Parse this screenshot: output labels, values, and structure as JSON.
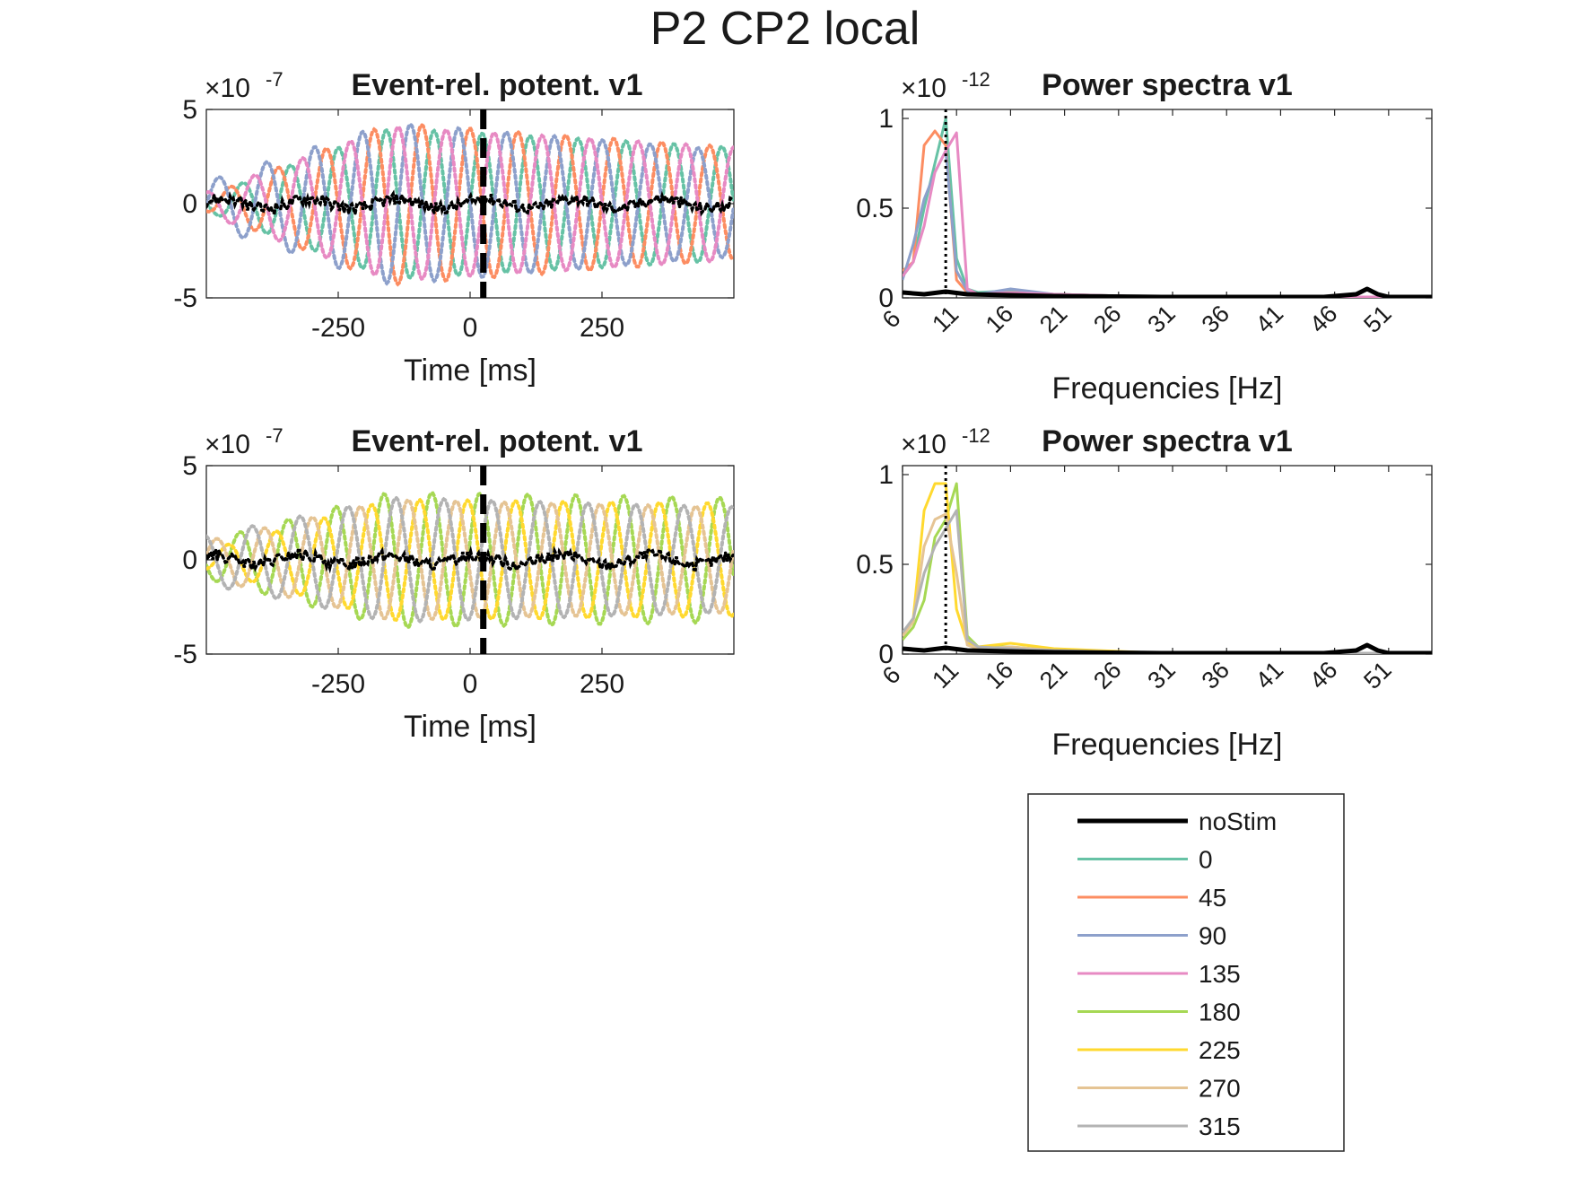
{
  "figure": {
    "title": "P2 CP2 local"
  },
  "legend": {
    "entries": [
      {
        "label": "noStim",
        "color": "#000000",
        "width": 5
      },
      {
        "label": "0",
        "color": "#66C2A5",
        "width": 3
      },
      {
        "label": "45",
        "color": "#FC8D62",
        "width": 3
      },
      {
        "label": "90",
        "color": "#8DA0CB",
        "width": 3
      },
      {
        "label": "135",
        "color": "#E78AC3",
        "width": 3
      },
      {
        "label": "180",
        "color": "#A6D854",
        "width": 3
      },
      {
        "label": "225",
        "color": "#FFD92F",
        "width": 3
      },
      {
        "label": "270",
        "color": "#E5C494",
        "width": 3
      },
      {
        "label": "315",
        "color": "#B3B3B3",
        "width": 3
      }
    ]
  },
  "chart_data": [
    {
      "id": "erp_top",
      "type": "line",
      "title": "Event-rel. potent. v1",
      "exponent_label": "×10",
      "exponent": "-7",
      "xlabel": "Time [ms]",
      "ylabel": "",
      "xlim": [
        -500,
        500
      ],
      "ylim": [
        -5,
        5
      ],
      "xticks": [
        -250,
        0,
        250
      ],
      "xtick_labels": [
        "-250",
        "0",
        "250"
      ],
      "yticks": [
        -5,
        0,
        5
      ],
      "ytick_labels": [
        "-5",
        "0",
        "5"
      ],
      "marker_line": {
        "x": 25,
        "style": "dashed",
        "color": "#000000"
      },
      "series": [
        {
          "name": "0",
          "color": "#66C2A5",
          "style": "dotted",
          "amp_envelope": [
            0.4,
            4.0,
            3.0
          ],
          "freq_hz": 11,
          "phase": 0.0
        },
        {
          "name": "45",
          "color": "#FC8D62",
          "style": "dotted",
          "amp_envelope": [
            0.4,
            4.3,
            3.0
          ],
          "freq_hz": 11,
          "phase": 1.6
        },
        {
          "name": "90",
          "color": "#8DA0CB",
          "style": "dotted",
          "amp_envelope": [
            1.2,
            4.3,
            2.8
          ],
          "freq_hz": 11,
          "phase": 3.1
        },
        {
          "name": "135",
          "color": "#E78AC3",
          "style": "dotted",
          "amp_envelope": [
            0.6,
            4.1,
            3.0
          ],
          "freq_hz": 11,
          "phase": 4.7
        },
        {
          "name": "noStim",
          "color": "#000000",
          "style": "dotted",
          "amp_envelope": [
            0.3,
            0.4,
            0.3
          ],
          "freq_hz": 12,
          "phase": 0.5
        }
      ]
    },
    {
      "id": "psd_top",
      "type": "line",
      "title": "Power spectra v1",
      "exponent_label": "×10",
      "exponent": "-12",
      "xlabel": "Frequencies [Hz]",
      "ylabel": "",
      "xlim": [
        6,
        55
      ],
      "ylim": [
        0,
        1.05
      ],
      "xticks": [
        6,
        11,
        16,
        21,
        26,
        31,
        36,
        41,
        46,
        51
      ],
      "xtick_labels": [
        "6",
        "11",
        "16",
        "21",
        "26",
        "31",
        "36",
        "41",
        "46",
        "51"
      ],
      "yticks": [
        0,
        0.5,
        1
      ],
      "ytick_labels": [
        "0",
        "0.5",
        "1"
      ],
      "marker_line": {
        "x": 10,
        "style": "dotted",
        "color": "#000000"
      },
      "series": [
        {
          "name": "noStim",
          "color": "#000000",
          "width": 5,
          "x": [
            6,
            8,
            10,
            12,
            16,
            20,
            30,
            45,
            48,
            49,
            50,
            51,
            55
          ],
          "y": [
            0.03,
            0.02,
            0.035,
            0.02,
            0.015,
            0.01,
            0.005,
            0.005,
            0.02,
            0.05,
            0.02,
            0.005,
            0.005
          ]
        },
        {
          "name": "0",
          "color": "#66C2A5",
          "width": 3,
          "x": [
            6,
            7,
            8,
            9,
            10,
            11,
            12,
            13,
            16,
            20,
            30,
            55
          ],
          "y": [
            0.12,
            0.2,
            0.5,
            0.75,
            1.0,
            0.22,
            0.05,
            0.03,
            0.04,
            0.02,
            0.005,
            0.005
          ]
        },
        {
          "name": "45",
          "color": "#FC8D62",
          "width": 3,
          "x": [
            6,
            7,
            8,
            9,
            10,
            11,
            12,
            13,
            16,
            20,
            30,
            55
          ],
          "y": [
            0.15,
            0.2,
            0.85,
            0.93,
            0.85,
            0.1,
            0.03,
            0.02,
            0.03,
            0.02,
            0.005,
            0.005
          ]
        },
        {
          "name": "90",
          "color": "#8DA0CB",
          "width": 3,
          "x": [
            6,
            7,
            8,
            9,
            10,
            11,
            12,
            13,
            16,
            20,
            30,
            55
          ],
          "y": [
            0.1,
            0.3,
            0.55,
            0.7,
            0.82,
            0.15,
            0.04,
            0.02,
            0.05,
            0.02,
            0.005,
            0.005
          ]
        },
        {
          "name": "135",
          "color": "#E78AC3",
          "width": 3,
          "x": [
            6,
            7,
            8,
            9,
            10,
            11,
            12,
            13,
            16,
            20,
            30,
            55
          ],
          "y": [
            0.12,
            0.2,
            0.4,
            0.7,
            0.82,
            0.92,
            0.05,
            0.02,
            0.03,
            0.02,
            0.005,
            0.005
          ]
        }
      ]
    },
    {
      "id": "erp_bottom",
      "type": "line",
      "title": "Event-rel. potent. v1",
      "exponent_label": "×10",
      "exponent": "-7",
      "xlabel": "Time [ms]",
      "ylabel": "",
      "xlim": [
        -500,
        500
      ],
      "ylim": [
        -5,
        5
      ],
      "xticks": [
        -250,
        0,
        250
      ],
      "xtick_labels": [
        "-250",
        "0",
        "250"
      ],
      "yticks": [
        -5,
        0,
        5
      ],
      "ytick_labels": [
        "-5",
        "0",
        "5"
      ],
      "marker_line": {
        "x": 25,
        "style": "dashed",
        "color": "#000000"
      },
      "series": [
        {
          "name": "180",
          "color": "#A6D854",
          "style": "dotted",
          "amp_envelope": [
            1.0,
            3.6,
            3.3
          ],
          "freq_hz": 11,
          "phase": 0.3
        },
        {
          "name": "225",
          "color": "#FFD92F",
          "style": "dotted",
          "amp_envelope": [
            0.5,
            3.2,
            3.0
          ],
          "freq_hz": 11,
          "phase": 1.9
        },
        {
          "name": "270",
          "color": "#E5C494",
          "style": "dotted",
          "amp_envelope": [
            1.0,
            3.2,
            2.8
          ],
          "freq_hz": 11,
          "phase": 3.4
        },
        {
          "name": "315",
          "color": "#B3B3B3",
          "style": "dotted",
          "amp_envelope": [
            1.3,
            3.3,
            2.8
          ],
          "freq_hz": 11,
          "phase": 5.0
        },
        {
          "name": "noStim",
          "color": "#000000",
          "style": "dotted",
          "amp_envelope": [
            0.3,
            0.4,
            0.3
          ],
          "freq_hz": 12,
          "phase": 1.2
        }
      ]
    },
    {
      "id": "psd_bottom",
      "type": "line",
      "title": "Power spectra v1",
      "exponent_label": "×10",
      "exponent": "-12",
      "xlabel": "Frequencies [Hz]",
      "ylabel": "",
      "xlim": [
        6,
        55
      ],
      "ylim": [
        0,
        1.05
      ],
      "xticks": [
        6,
        11,
        16,
        21,
        26,
        31,
        36,
        41,
        46,
        51
      ],
      "xtick_labels": [
        "6",
        "11",
        "16",
        "21",
        "26",
        "31",
        "36",
        "41",
        "46",
        "51"
      ],
      "yticks": [
        0,
        0.5,
        1
      ],
      "ytick_labels": [
        "0",
        "0.5",
        "1"
      ],
      "marker_line": {
        "x": 10,
        "style": "dotted",
        "color": "#000000"
      },
      "series": [
        {
          "name": "noStim",
          "color": "#000000",
          "width": 5,
          "x": [
            6,
            8,
            10,
            12,
            16,
            20,
            30,
            45,
            48,
            49,
            50,
            51,
            55
          ],
          "y": [
            0.03,
            0.02,
            0.035,
            0.02,
            0.015,
            0.01,
            0.005,
            0.005,
            0.02,
            0.05,
            0.02,
            0.005,
            0.005
          ]
        },
        {
          "name": "180",
          "color": "#A6D854",
          "width": 3,
          "x": [
            6,
            7,
            8,
            9,
            10,
            11,
            12,
            13,
            16,
            20,
            30,
            55
          ],
          "y": [
            0.08,
            0.15,
            0.3,
            0.65,
            0.75,
            0.95,
            0.1,
            0.04,
            0.04,
            0.02,
            0.005,
            0.005
          ]
        },
        {
          "name": "225",
          "color": "#FFD92F",
          "width": 3,
          "x": [
            6,
            7,
            8,
            9,
            10,
            11,
            12,
            13,
            16,
            20,
            30,
            55
          ],
          "y": [
            0.1,
            0.2,
            0.8,
            0.95,
            0.95,
            0.25,
            0.06,
            0.04,
            0.06,
            0.03,
            0.005,
            0.005
          ]
        },
        {
          "name": "270",
          "color": "#E5C494",
          "width": 3,
          "x": [
            6,
            7,
            8,
            9,
            10,
            11,
            12,
            13,
            16,
            20,
            30,
            55
          ],
          "y": [
            0.1,
            0.18,
            0.6,
            0.75,
            0.78,
            0.45,
            0.05,
            0.03,
            0.04,
            0.02,
            0.005,
            0.005
          ]
        },
        {
          "name": "315",
          "color": "#B3B3B3",
          "width": 3,
          "x": [
            6,
            7,
            8,
            9,
            10,
            11,
            12,
            13,
            16,
            20,
            30,
            55
          ],
          "y": [
            0.12,
            0.2,
            0.45,
            0.6,
            0.7,
            0.8,
            0.08,
            0.04,
            0.03,
            0.02,
            0.005,
            0.005
          ]
        }
      ]
    }
  ]
}
